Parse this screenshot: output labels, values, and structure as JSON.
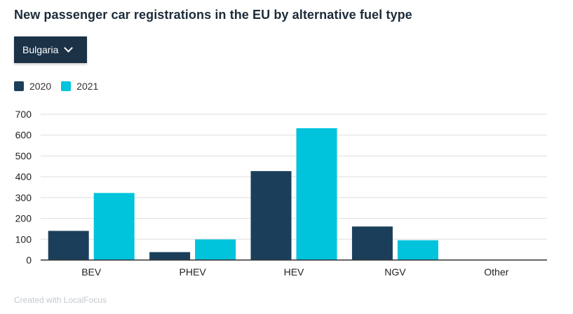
{
  "title": "New passenger car registrations in the EU by alternative fuel type",
  "dropdown": {
    "selected": "Bulgaria",
    "icon": "chevron-down-icon"
  },
  "footer": "Created with LocalFocus",
  "colors": {
    "2020": "#1b3f5a",
    "2021": "#00c3dc",
    "grid": "#dedede",
    "axis": "#333333"
  },
  "chart_data": {
    "type": "bar",
    "title": "New passenger car registrations in the EU by alternative fuel type",
    "xlabel": "",
    "ylabel": "",
    "categories": [
      "BEV",
      "PHEV",
      "HEV",
      "NGV",
      "Other"
    ],
    "series": [
      {
        "name": "2020",
        "values": [
          140,
          38,
          427,
          161,
          0
        ]
      },
      {
        "name": "2021",
        "values": [
          322,
          99,
          633,
          95,
          0
        ]
      }
    ],
    "ylim": [
      0,
      700
    ],
    "yticks": [
      0,
      100,
      200,
      300,
      400,
      500,
      600,
      700
    ],
    "grid": true,
    "legend": "top-left"
  }
}
